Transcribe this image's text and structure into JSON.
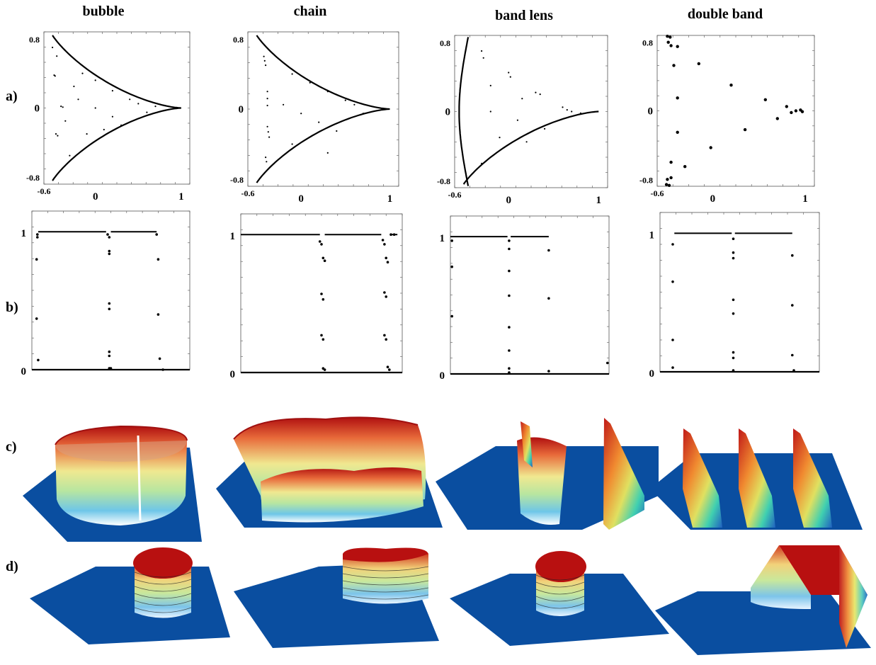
{
  "columns": [
    {
      "title": "bubble"
    },
    {
      "title": "chain"
    },
    {
      "title": "band lens"
    },
    {
      "title": "double band"
    }
  ],
  "row_labels": {
    "a": "a)",
    "b": "b)",
    "c": "c)",
    "d": "d)"
  },
  "colors": {
    "surface_base": "#0a4ea0",
    "surface_top": "#c01010",
    "points": "#000000"
  },
  "chart_data": [
    {
      "type": "scatter",
      "panel": "a",
      "column": "bubble",
      "xlim": [
        -0.6,
        1.1
      ],
      "ylim": [
        -0.88,
        0.88
      ],
      "x_ticks_major": [
        "0",
        "1"
      ],
      "x_tick_minor": "-0.6",
      "y_ticks": [
        "0.8",
        "0",
        "-0.8"
      ],
      "curve": "deltoid",
      "interior_points": [
        [
          -0.48,
          0.38
        ],
        [
          -0.47,
          0.37
        ],
        [
          -0.4,
          0.02
        ],
        [
          -0.38,
          0.01
        ],
        [
          -0.46,
          -0.3
        ],
        [
          -0.44,
          -0.32
        ],
        [
          -0.15,
          0.4
        ],
        [
          0.0,
          0.32
        ],
        [
          0.2,
          0.2
        ],
        [
          0.4,
          0.1
        ],
        [
          -0.2,
          0.1
        ],
        [
          0.0,
          0.0
        ],
        [
          0.2,
          -0.1
        ],
        [
          -0.1,
          -0.3
        ],
        [
          0.1,
          -0.25
        ],
        [
          -0.3,
          -0.55
        ],
        [
          -0.5,
          0.7
        ],
        [
          -0.45,
          0.6
        ],
        [
          0.5,
          0.05
        ],
        [
          0.6,
          -0.05
        ],
        [
          0.7,
          0.02
        ],
        [
          -0.25,
          0.25
        ],
        [
          -0.35,
          -0.15
        ],
        [
          0.3,
          -0.2
        ]
      ]
    },
    {
      "type": "scatter",
      "panel": "a",
      "column": "chain",
      "xlim": [
        -0.6,
        1.1
      ],
      "ylim": [
        -0.88,
        0.88
      ],
      "x_ticks_major": [
        "0",
        "1"
      ],
      "x_tick_minor": "-0.6",
      "y_ticks": [
        "0.8",
        "0",
        "-0.8"
      ],
      "curve": "deltoid",
      "interior_points": [
        [
          -0.42,
          0.6
        ],
        [
          -0.41,
          0.55
        ],
        [
          -0.4,
          0.5
        ],
        [
          -0.38,
          0.2
        ],
        [
          -0.38,
          0.12
        ],
        [
          -0.38,
          0.04
        ],
        [
          -0.38,
          -0.2
        ],
        [
          -0.37,
          -0.26
        ],
        [
          -0.36,
          -0.32
        ],
        [
          -0.4,
          -0.55
        ],
        [
          -0.39,
          -0.6
        ],
        [
          -0.1,
          0.4
        ],
        [
          0.1,
          0.3
        ],
        [
          0.3,
          0.2
        ],
        [
          0.5,
          0.1
        ],
        [
          -0.2,
          0.05
        ],
        [
          0.0,
          -0.05
        ],
        [
          0.2,
          -0.15
        ],
        [
          0.4,
          -0.25
        ],
        [
          -0.1,
          -0.4
        ],
        [
          0.3,
          -0.5
        ],
        [
          0.6,
          0.05
        ],
        [
          0.7,
          -0.05
        ]
      ]
    },
    {
      "type": "scatter",
      "panel": "a",
      "column": "band lens",
      "xlim": [
        -0.6,
        1.1
      ],
      "ylim": [
        -0.88,
        0.88
      ],
      "x_ticks_major": [
        "0",
        "1"
      ],
      "x_tick_minor": "-0.6",
      "y_ticks": [
        "0.8",
        "0",
        "-0.8"
      ],
      "curve": "lens",
      "interior_points": [
        [
          -0.3,
          0.7
        ],
        [
          -0.28,
          0.62
        ],
        [
          0.0,
          0.45
        ],
        [
          0.02,
          0.4
        ],
        [
          0.3,
          0.22
        ],
        [
          0.35,
          0.2
        ],
        [
          0.6,
          0.05
        ],
        [
          0.65,
          0.02
        ],
        [
          -0.2,
          0.0
        ],
        [
          0.1,
          -0.1
        ],
        [
          -0.1,
          -0.3
        ],
        [
          0.2,
          -0.35
        ],
        [
          0.4,
          -0.2
        ],
        [
          -0.3,
          -0.6
        ],
        [
          -0.2,
          0.3
        ],
        [
          0.15,
          0.15
        ],
        [
          0.7,
          0.0
        ],
        [
          0.8,
          -0.02
        ]
      ]
    },
    {
      "type": "scatter",
      "panel": "a",
      "column": "double band",
      "xlim": [
        -0.6,
        1.1
      ],
      "ylim": [
        -0.88,
        0.88
      ],
      "x_ticks_major": [
        "0",
        "1"
      ],
      "x_tick_minor": "-0.6",
      "y_ticks": [
        "0.8",
        "0",
        "-0.8"
      ],
      "points": [
        [
          -0.49,
          0.87
        ],
        [
          -0.46,
          0.86
        ],
        [
          -0.48,
          0.8
        ],
        [
          -0.45,
          0.76
        ],
        [
          -0.38,
          0.75
        ],
        [
          -0.42,
          0.53
        ],
        [
          -0.15,
          0.55
        ],
        [
          0.2,
          0.3
        ],
        [
          -0.38,
          0.15
        ],
        [
          0.57,
          0.13
        ],
        [
          0.8,
          0.05
        ],
        [
          0.7,
          -0.09
        ],
        [
          0.85,
          -0.02
        ],
        [
          0.9,
          0.0
        ],
        [
          0.95,
          0.01
        ],
        [
          0.97,
          -0.01
        ],
        [
          0.35,
          -0.22
        ],
        [
          -0.38,
          -0.25
        ],
        [
          -0.02,
          -0.43
        ],
        [
          -0.45,
          -0.6
        ],
        [
          -0.3,
          -0.65
        ],
        [
          -0.45,
          -0.78
        ],
        [
          -0.49,
          -0.8
        ],
        [
          -0.5,
          -0.86
        ],
        [
          -0.47,
          -0.87
        ]
      ]
    },
    {
      "type": "scatter",
      "panel": "b",
      "column": "bubble",
      "ylim": [
        0,
        1.15
      ],
      "y_ticks": [
        "1",
        "0"
      ],
      "points": [
        [
          0.035,
          0.98
        ],
        [
          0.035,
          0.96
        ],
        [
          0.03,
          0.8
        ],
        [
          0.03,
          0.37
        ],
        [
          0.04,
          0.07
        ],
        [
          0.48,
          0.98
        ],
        [
          0.49,
          0.96
        ],
        [
          0.49,
          0.86
        ],
        [
          0.49,
          0.84
        ],
        [
          0.49,
          0.48
        ],
        [
          0.49,
          0.44
        ],
        [
          0.49,
          0.13
        ],
        [
          0.49,
          0.1
        ],
        [
          0.49,
          0.01
        ],
        [
          0.5,
          0.01
        ],
        [
          0.79,
          0.98
        ],
        [
          0.8,
          0.8
        ],
        [
          0.8,
          0.4
        ],
        [
          0.81,
          0.08
        ],
        [
          0.83,
          0.0
        ]
      ],
      "plateau_segments": [
        [
          0.04,
          0.47
        ],
        [
          0.5,
          0.79
        ]
      ]
    },
    {
      "type": "scatter",
      "panel": "b",
      "column": "chain",
      "ylim": [
        0,
        1.15
      ],
      "y_ticks": [
        "1",
        "0"
      ],
      "points": [
        [
          0.49,
          0.95
        ],
        [
          0.5,
          0.93
        ],
        [
          0.51,
          0.83
        ],
        [
          0.52,
          0.81
        ],
        [
          0.5,
          0.57
        ],
        [
          0.51,
          0.53
        ],
        [
          0.5,
          0.27
        ],
        [
          0.51,
          0.24
        ],
        [
          0.51,
          0.03
        ],
        [
          0.52,
          0.02
        ],
        [
          0.88,
          0.96
        ],
        [
          0.89,
          0.93
        ],
        [
          0.9,
          0.83
        ],
        [
          0.91,
          0.8
        ],
        [
          0.89,
          0.58
        ],
        [
          0.9,
          0.55
        ],
        [
          0.89,
          0.27
        ],
        [
          0.9,
          0.24
        ],
        [
          0.91,
          0.04
        ],
        [
          0.92,
          0.02
        ],
        [
          0.93,
          1.0
        ],
        [
          0.95,
          1.0
        ]
      ],
      "plateau_segments": [
        [
          0.0,
          0.49
        ],
        [
          0.52,
          0.87
        ],
        [
          0.93,
          0.97
        ]
      ]
    },
    {
      "type": "scatter",
      "panel": "b",
      "column": "band lens",
      "ylim": [
        0,
        1.15
      ],
      "y_ticks": [
        "1",
        "0"
      ],
      "points": [
        [
          0.01,
          0.97
        ],
        [
          0.01,
          0.78
        ],
        [
          0.01,
          0.42
        ],
        [
          0.37,
          0.97
        ],
        [
          0.37,
          0.91
        ],
        [
          0.37,
          0.75
        ],
        [
          0.37,
          0.57
        ],
        [
          0.37,
          0.34
        ],
        [
          0.37,
          0.17
        ],
        [
          0.37,
          0.04
        ],
        [
          0.37,
          0.01
        ],
        [
          0.62,
          0.9
        ],
        [
          0.62,
          0.55
        ],
        [
          0.62,
          0.02
        ],
        [
          0.99,
          0.08
        ]
      ],
      "plateau_segments": [
        [
          0.0,
          0.36
        ],
        [
          0.38,
          0.62
        ]
      ]
    },
    {
      "type": "scatter",
      "panel": "b",
      "column": "double band",
      "ylim": [
        0,
        1.15
      ],
      "y_ticks": [
        "1",
        "0"
      ],
      "points": [
        [
          0.08,
          0.92
        ],
        [
          0.08,
          0.65
        ],
        [
          0.08,
          0.23
        ],
        [
          0.08,
          0.03
        ],
        [
          0.46,
          0.96
        ],
        [
          0.46,
          0.86
        ],
        [
          0.46,
          0.82
        ],
        [
          0.46,
          0.52
        ],
        [
          0.46,
          0.42
        ],
        [
          0.46,
          0.14
        ],
        [
          0.46,
          0.1
        ],
        [
          0.46,
          0.01
        ],
        [
          0.83,
          0.84
        ],
        [
          0.83,
          0.48
        ],
        [
          0.83,
          0.12
        ],
        [
          0.84,
          0.01
        ]
      ],
      "plateau_segments": [
        [
          0.09,
          0.45
        ],
        [
          0.47,
          0.83
        ]
      ]
    }
  ]
}
